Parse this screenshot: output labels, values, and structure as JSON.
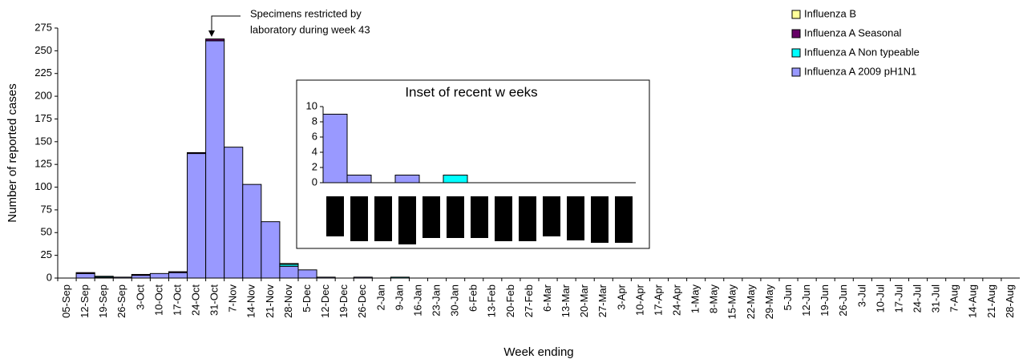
{
  "chart_data": [
    {
      "type": "stacked_bar",
      "annotation": [
        "Specimens restricted by",
        "laboratory during week 43"
      ],
      "y_label": "Number of reported cases",
      "x_label": "Week ending",
      "categories": [
        "05-Sep",
        "12-Sep",
        "19-Sep",
        "26-Sep",
        "3-Oct",
        "10-Oct",
        "17-Oct",
        "24-Oct",
        "31-Oct",
        "7-Nov",
        "14-Nov",
        "21-Nov",
        "28-Nov",
        "5-Dec",
        "12-Dec",
        "19-Dec",
        "26-Dec",
        "2-Jan",
        "9-Jan",
        "16-Jan",
        "23-Jan",
        "30-Jan",
        "6-Feb",
        "13-Feb",
        "20-Feb",
        "27-Feb",
        "6-Mar",
        "13-Mar",
        "20-Mar",
        "27-Mar",
        "3-Apr",
        "10-Apr",
        "17-Apr",
        "24-Apr",
        "1-May",
        "8-May",
        "15-May",
        "22-May",
        "29-May",
        "5-Jun",
        "12-Jun",
        "19-Jun",
        "26-Jun",
        "3-Jul",
        "10-Jul",
        "17-Jul",
        "24-Jul",
        "31-Jul",
        "7-Aug",
        "14-Aug",
        "21-Aug",
        "28-Aug"
      ],
      "series": [
        {
          "name": "Influenza A 2009 pH1N1",
          "color": "#9999ff",
          "values": [
            0,
            5,
            1,
            1,
            3,
            5,
            6,
            137,
            261,
            144,
            103,
            62,
            13,
            9,
            1,
            0,
            1,
            0,
            0,
            0,
            0,
            0,
            0,
            0,
            0,
            0,
            0,
            0,
            0,
            0,
            0,
            0,
            0,
            0,
            0,
            0,
            0,
            0,
            0,
            0,
            0,
            0,
            0,
            0,
            0,
            0,
            0,
            0,
            0,
            0,
            0,
            0
          ]
        },
        {
          "name": "Influenza A Non typeable",
          "color": "#00ffff",
          "values": [
            0,
            0,
            1,
            0,
            0,
            0,
            0,
            0,
            0,
            0,
            0,
            0,
            2,
            0,
            0,
            0,
            0,
            0,
            1,
            0,
            0,
            0,
            0,
            0,
            0,
            0,
            0,
            0,
            0,
            0,
            0,
            0,
            0,
            0,
            0,
            0,
            0,
            0,
            0,
            0,
            0,
            0,
            0,
            0,
            0,
            0,
            0,
            0,
            0,
            0,
            0,
            0
          ]
        },
        {
          "name": "Influenza A Seasonal",
          "color": "#660066",
          "values": [
            0,
            1,
            0,
            0,
            1,
            0,
            1,
            1,
            2,
            0,
            0,
            0,
            0,
            0,
            0,
            0,
            0,
            0,
            0,
            0,
            0,
            0,
            0,
            0,
            0,
            0,
            0,
            0,
            0,
            0,
            0,
            0,
            0,
            0,
            0,
            0,
            0,
            0,
            0,
            0,
            0,
            0,
            0,
            0,
            0,
            0,
            0,
            0,
            0,
            0,
            0,
            0
          ]
        },
        {
          "name": "Influenza B",
          "color": "#ffff99",
          "values": [
            0,
            0,
            0,
            0,
            0,
            0,
            0,
            0,
            0,
            0,
            0,
            0,
            1,
            0,
            0,
            0,
            0,
            0,
            0,
            0,
            0,
            0,
            0,
            0,
            0,
            0,
            0,
            0,
            0,
            0,
            0,
            0,
            0,
            0,
            0,
            0,
            0,
            0,
            0,
            0,
            0,
            0,
            0,
            0,
            0,
            0,
            0,
            0,
            0,
            0,
            0,
            0
          ]
        }
      ],
      "ylim": [
        0,
        275
      ],
      "yticks": [
        0,
        25,
        50,
        75,
        100,
        125,
        150,
        175,
        200,
        225,
        250,
        275
      ],
      "legend": "top-right"
    },
    {
      "type": "stacked_bar",
      "title": "Inset of recent w eeks",
      "series": [
        {
          "color": "#9999ff",
          "values": [
            9,
            1,
            0,
            1,
            0,
            0,
            0,
            0,
            0,
            0,
            0,
            0,
            0
          ]
        },
        {
          "color": "#00ffff",
          "values": [
            0,
            0,
            0,
            0,
            0,
            1,
            0,
            0,
            0,
            0,
            0,
            0,
            0
          ]
        }
      ],
      "ylim": [
        0,
        10
      ],
      "yticks": [
        0,
        2,
        4,
        6,
        8,
        10
      ]
    }
  ]
}
